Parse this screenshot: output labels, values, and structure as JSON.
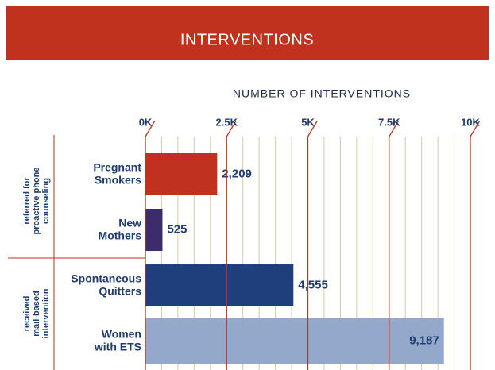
{
  "chart_data": {
    "type": "bar",
    "orientation": "horizontal",
    "title": "INTERVENTIONS",
    "x_axis_label": "NUMBER OF INTERVENTIONS",
    "groups": [
      "referred for\nproactive phone\ncounseling",
      "received\nmail-based\nintervention"
    ],
    "categories": [
      "Pregnant\nSmokers",
      "New\nMothers",
      "Spontaneous\nQuitters",
      "Women\nwith ETS"
    ],
    "values": [
      2209,
      525,
      4555,
      9187
    ],
    "value_labels": [
      "2,209",
      "525",
      "4,555",
      "9,187"
    ],
    "colors": [
      "#c1311f",
      "#3b2d6c",
      "#1e3f7c",
      "#94a8cc"
    ],
    "xlim": [
      0,
      10000
    ],
    "xticks": [
      {
        "value": 0,
        "label": "0K"
      },
      {
        "value": 2500,
        "label": "2.5K"
      },
      {
        "value": 5000,
        "label": "5K"
      },
      {
        "value": 7500,
        "label": "7.5K"
      },
      {
        "value": 10000,
        "label": "10K"
      }
    ],
    "grid": true
  }
}
